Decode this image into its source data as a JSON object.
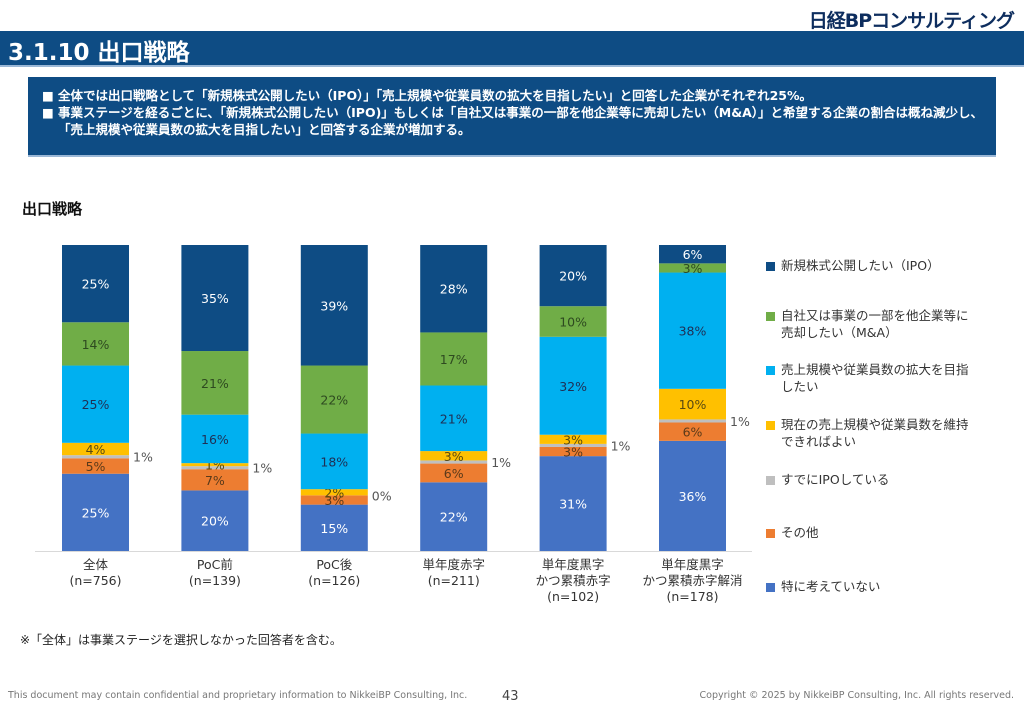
{
  "header": {
    "logo": "日経BPコンサルティング",
    "title": "3.1.10 出口戦略"
  },
  "summary": {
    "bullets": [
      "全体では出口戦略として「新規株式公開したい（IPO）」「売上規模や従業員数の拡大を目指したい」と回答した企業がそれぞれ25%。",
      "事業ステージを経るごとに、「新規株式公開したい（IPO)」もしくは「自社又は事業の一部を他企業等に売却したい（M&A）」と希望する企業の割合は概ね減少し、「売上規模や従業員数の拡大を目指したい」と回答する企業が増加する。"
    ]
  },
  "chart_data": {
    "type": "bar",
    "stacked": true,
    "title": "出口戦略",
    "xlabel": "",
    "ylabel": "",
    "ylim": [
      0,
      100
    ],
    "grid": false,
    "legend_position": "right",
    "categories": [
      [
        "全体",
        "(n=756)"
      ],
      [
        "PoC前",
        "(n=139)"
      ],
      [
        "PoC後",
        "(n=126)"
      ],
      [
        "単年度赤字",
        "(n=211)"
      ],
      [
        "単年度黒字",
        "かつ累積赤字",
        "(n=102)"
      ],
      [
        "単年度黒字",
        "かつ累積赤字解消",
        "(n=178)"
      ]
    ],
    "series": [
      {
        "name": "特に考えていない",
        "color": "#4472c4",
        "label_color": "#ffffff",
        "values": [
          25,
          20,
          15,
          22,
          31,
          36
        ]
      },
      {
        "name": "その他",
        "color": "#ed7d31",
        "label_color": "#5a3a1a",
        "values": [
          5,
          7,
          3,
          6,
          3,
          6
        ]
      },
      {
        "name": "すでにIPOしている",
        "color": "#bfbfbf",
        "label_color": "#555555",
        "values": [
          1,
          1,
          0,
          1,
          1,
          1
        ],
        "label_outside": true
      },
      {
        "name": "現在の売上規模や従業員数を維持できればよい",
        "color": "#ffc000",
        "label_color": "#5a4a10",
        "values": [
          4,
          1,
          2,
          3,
          3,
          10
        ]
      },
      {
        "name": "売上規模や従業員数の拡大を目指したい",
        "color": "#00b0f0",
        "label_color": "#1f2f55",
        "values": [
          25,
          16,
          18,
          21,
          32,
          38
        ]
      },
      {
        "name": "自社又は事業の一部を他企業等に売却したい（M&A）",
        "color": "#70ad47",
        "label_color": "#2e4a20",
        "values": [
          14,
          21,
          22,
          17,
          10,
          3
        ]
      },
      {
        "name": "新規株式公開したい（IPO）",
        "color": "#0e4c84",
        "label_color": "#ffffff",
        "values": [
          25,
          35,
          39,
          28,
          20,
          6
        ]
      }
    ],
    "legend": [
      {
        "label_lines": [
          "新規株式公開したい（IPO）"
        ],
        "color": "#0e4c84"
      },
      {
        "label_lines": [
          "自社又は事業の一部を他企業等に",
          "売却したい（M&A）"
        ],
        "color": "#70ad47"
      },
      {
        "label_lines": [
          "売上規模や従業員数の拡大を目指",
          "したい"
        ],
        "color": "#00b0f0"
      },
      {
        "label_lines": [
          "現在の売上規模や従業員数を維持",
          "できればよい"
        ],
        "color": "#ffc000"
      },
      {
        "label_lines": [
          "すでにIPOしている"
        ],
        "color": "#bfbfbf"
      },
      {
        "label_lines": [
          "その他"
        ],
        "color": "#ed7d31"
      },
      {
        "label_lines": [
          "特に考えていない"
        ],
        "color": "#4472c4"
      }
    ]
  },
  "footer": {
    "note": "※「全体」は事業ステージを選択しなかった回答者を含む。",
    "disclaimer": "This document may contain confidential and proprietary information to NikkeiBP Consulting, Inc.",
    "page": "43",
    "copyright": "Copyright © 2025 by NikkeiBP Consulting, Inc. All rights reserved."
  }
}
